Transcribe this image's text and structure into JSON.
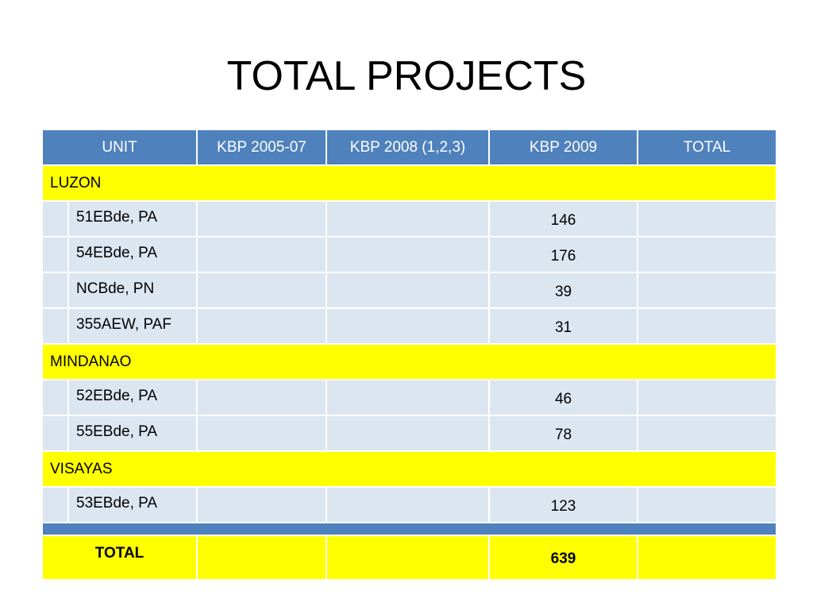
{
  "title": "TOTAL PROJECTS",
  "colors": {
    "header": "#4f81bd",
    "region": "#ffff00",
    "row": "#dce6f1"
  },
  "table": {
    "headers": {
      "unit": "UNIT",
      "kbp_2005_07": "KBP 2005-07",
      "kbp_2008": "KBP 2008 (1,2,3)",
      "kbp_2009": "KBP 2009",
      "total": "TOTAL"
    },
    "regions": [
      {
        "name": "LUZON",
        "units": [
          {
            "unit": "51EBde, PA",
            "kbp_2005_07": "",
            "kbp_2008": "",
            "kbp_2009": "146",
            "total": ""
          },
          {
            "unit": "54EBde, PA",
            "kbp_2005_07": "",
            "kbp_2008": "",
            "kbp_2009": "176",
            "total": ""
          },
          {
            "unit": "NCBde, PN",
            "kbp_2005_07": "",
            "kbp_2008": "",
            "kbp_2009": "39",
            "total": ""
          },
          {
            "unit": "355AEW, PAF",
            "kbp_2005_07": "",
            "kbp_2008": "",
            "kbp_2009": "31",
            "total": ""
          }
        ]
      },
      {
        "name": "MINDANAO",
        "units": [
          {
            "unit": "52EBde, PA",
            "kbp_2005_07": "",
            "kbp_2008": "",
            "kbp_2009": "46",
            "total": ""
          },
          {
            "unit": "55EBde, PA",
            "kbp_2005_07": "",
            "kbp_2008": "",
            "kbp_2009": "78",
            "total": ""
          }
        ]
      },
      {
        "name": "VISAYAS",
        "units": [
          {
            "unit": "53EBde, PA",
            "kbp_2005_07": "",
            "kbp_2008": "",
            "kbp_2009": "123",
            "total": ""
          }
        ]
      }
    ],
    "total_row": {
      "label": "TOTAL",
      "kbp_2005_07": "",
      "kbp_2008": "",
      "kbp_2009": "639",
      "total": ""
    }
  }
}
